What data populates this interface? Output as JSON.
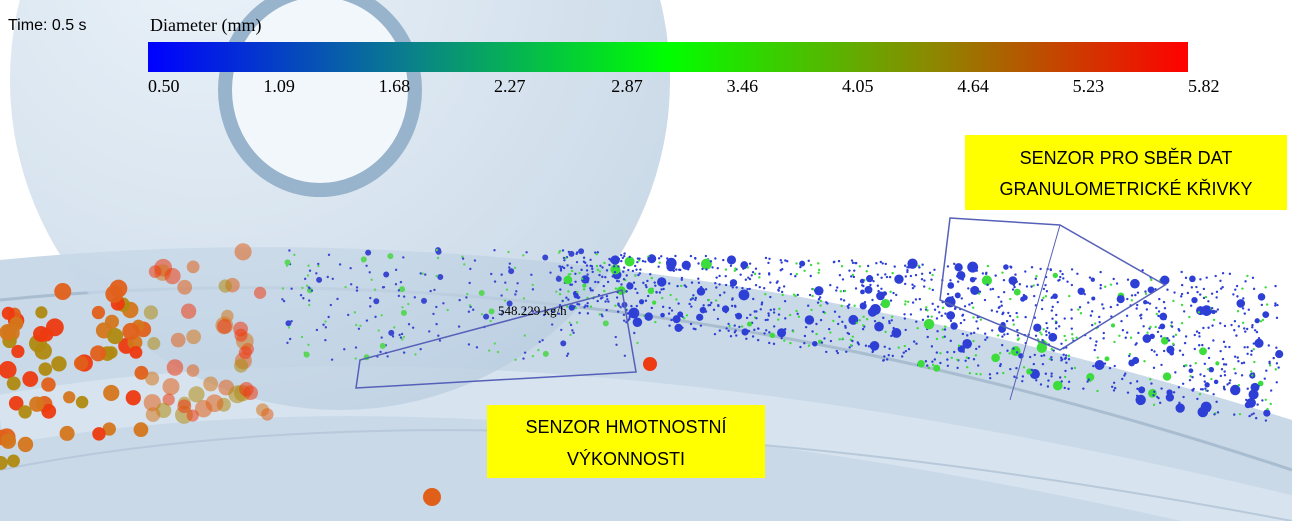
{
  "time_label": "Time: 0.5 s",
  "colorbar": {
    "title": "Diameter (mm)",
    "range": [
      0.5,
      5.82
    ],
    "colors": [
      "#0000ff",
      "#0a7f8c",
      "#00ff00",
      "#8a8a00",
      "#ff0000"
    ],
    "ticks": [
      {
        "value": 0.5,
        "label": "0.50"
      },
      {
        "value": 1.09,
        "label": "1.09"
      },
      {
        "value": 1.68,
        "label": "1.68"
      },
      {
        "value": 2.27,
        "label": "2.27"
      },
      {
        "value": 2.87,
        "label": "2.87"
      },
      {
        "value": 3.46,
        "label": "3.46"
      },
      {
        "value": 4.05,
        "label": "4.05"
      },
      {
        "value": 4.64,
        "label": "4.64"
      },
      {
        "value": 5.23,
        "label": "5.23"
      },
      {
        "value": 5.82,
        "label": "5.82"
      }
    ]
  },
  "flow_label": "548.229 kg/h",
  "annotations": [
    {
      "lines": [
        "SENZOR PRO SBĚR DAT",
        "GRANULOMETRICKÉ KŘIVKY"
      ]
    },
    {
      "lines": [
        "SENZOR HMOTNOSTNÍ",
        "VÝKONNOSTI"
      ]
    }
  ]
}
